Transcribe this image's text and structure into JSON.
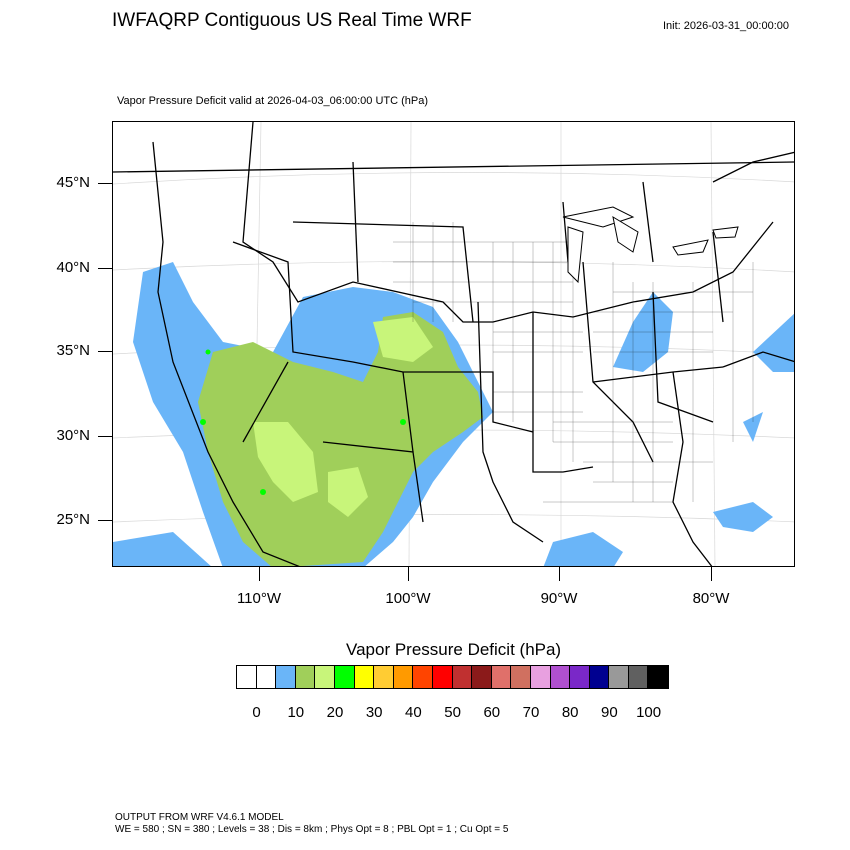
{
  "title": "IWFAQRP Contiguous US Real Time WRF",
  "init": "Init: 2026-03-31_00:00:00",
  "subtitle": "Vapor Pressure Deficit valid at 2026-04-03_06:00:00 UTC   (hPa)",
  "map": {
    "lat_labels": [
      "45°N",
      "40°N",
      "35°N",
      "30°N",
      "25°N"
    ],
    "lon_labels": [
      "110°W",
      "100°W",
      "90°W",
      "80°W"
    ]
  },
  "colorbar": {
    "title": "Vapor Pressure Deficit  (hPa)",
    "colors": [
      "#ffffff",
      "#ffffff",
      "#6ab5f8",
      "#a0cf5a",
      "#c8f57a",
      "#00ff00",
      "#ffff00",
      "#ffcc33",
      "#ff9a00",
      "#ff4400",
      "#ff0000",
      "#c03030",
      "#8b1a1a",
      "#e0706a",
      "#d07060",
      "#e8a0e0",
      "#b050d0",
      "#7a28c8",
      "#000090",
      "#999999",
      "#606060",
      "#000000"
    ],
    "labels": [
      "0",
      "10",
      "20",
      "30",
      "40",
      "50",
      "60",
      "70",
      "80",
      "90",
      "100"
    ]
  },
  "footer": {
    "line1": "OUTPUT FROM WRF V4.6.1 MODEL",
    "line2": "WE = 580 ; SN = 380 ; Levels = 38 ; Dis = 8km ; Phys Opt = 8 ; PBL Opt = 1 ; Cu Opt = 5"
  }
}
